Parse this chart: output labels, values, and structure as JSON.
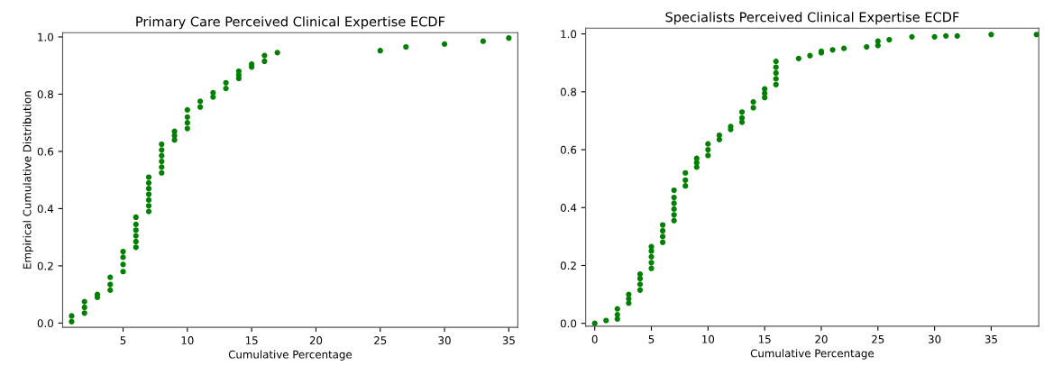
{
  "chart_data": [
    {
      "type": "scatter",
      "title": "Primary Care Perceived Clinical Expertise ECDF",
      "xlabel": "Cumulative Percentage",
      "ylabel": "Empirical Cumulative Distribution",
      "marker": "circle",
      "grid": false,
      "x": [
        1,
        1,
        2,
        2,
        2,
        3,
        3,
        4,
        4,
        4,
        5,
        5,
        5,
        5,
        6,
        6,
        6,
        6,
        6,
        6,
        7,
        7,
        7,
        7,
        7,
        7,
        7,
        8,
        8,
        8,
        8,
        8,
        8,
        9,
        9,
        9,
        10,
        10,
        10,
        10,
        11,
        11,
        12,
        12,
        13,
        13,
        14,
        14,
        14,
        15,
        15,
        16,
        16,
        17,
        25,
        27,
        30,
        33,
        35
      ],
      "series": [
        {
          "color": "#008000",
          "values": [
            0.005,
            0.025,
            0.035,
            0.055,
            0.075,
            0.09,
            0.1,
            0.115,
            0.135,
            0.16,
            0.18,
            0.205,
            0.23,
            0.25,
            0.265,
            0.285,
            0.305,
            0.325,
            0.345,
            0.37,
            0.39,
            0.41,
            0.43,
            0.45,
            0.47,
            0.49,
            0.51,
            0.525,
            0.545,
            0.565,
            0.585,
            0.605,
            0.625,
            0.64,
            0.655,
            0.67,
            0.68,
            0.7,
            0.72,
            0.745,
            0.755,
            0.775,
            0.79,
            0.805,
            0.82,
            0.84,
            0.855,
            0.867,
            0.88,
            0.895,
            0.905,
            0.915,
            0.935,
            0.945,
            0.952,
            0.965,
            0.975,
            0.985,
            0.996
          ]
        }
      ],
      "xlim": [
        0.3,
        35.7
      ],
      "ylim": [
        -0.015,
        1.015
      ],
      "xticks": [
        5,
        10,
        15,
        20,
        25,
        30,
        35
      ],
      "yticks": [
        {
          "value": 0,
          "label": "0.0"
        },
        {
          "value": 0.2,
          "label": "0.2"
        },
        {
          "value": 0.4,
          "label": "0.4"
        },
        {
          "value": 0.6,
          "label": "0.6"
        },
        {
          "value": 0.8,
          "label": "0.8"
        },
        {
          "value": 1,
          "label": "1.0"
        }
      ]
    },
    {
      "type": "scatter",
      "title": "Specialists Perceived Clinical Expertise ECDF",
      "xlabel": "Cumulative Percentage",
      "marker": "circle",
      "grid": false,
      "x": [
        0,
        1,
        2,
        2,
        2,
        3,
        3,
        3,
        4,
        4,
        4,
        4,
        5,
        5,
        5,
        5,
        5,
        6,
        6,
        6,
        6,
        7,
        7,
        7,
        7,
        7,
        7,
        8,
        8,
        8,
        9,
        9,
        9,
        10,
        10,
        10,
        11,
        11,
        12,
        12,
        13,
        13,
        13,
        14,
        14,
        15,
        15,
        15,
        16,
        16,
        16,
        16,
        16,
        18,
        19,
        20,
        20,
        21,
        22,
        24,
        25,
        25,
        26,
        28,
        30,
        31,
        32,
        35,
        39
      ],
      "series": [
        {
          "color": "#008000",
          "values": [
            0.0,
            0.01,
            0.015,
            0.03,
            0.05,
            0.07,
            0.085,
            0.1,
            0.115,
            0.135,
            0.155,
            0.17,
            0.19,
            0.21,
            0.23,
            0.25,
            0.265,
            0.28,
            0.3,
            0.32,
            0.34,
            0.355,
            0.375,
            0.395,
            0.415,
            0.435,
            0.46,
            0.475,
            0.495,
            0.52,
            0.54,
            0.555,
            0.57,
            0.58,
            0.6,
            0.62,
            0.635,
            0.65,
            0.67,
            0.68,
            0.695,
            0.71,
            0.73,
            0.745,
            0.765,
            0.78,
            0.795,
            0.81,
            0.825,
            0.845,
            0.865,
            0.885,
            0.905,
            0.915,
            0.925,
            0.935,
            0.94,
            0.945,
            0.95,
            0.955,
            0.96,
            0.975,
            0.98,
            0.99,
            0.99,
            0.993,
            0.993,
            0.998,
            0.998
          ]
        }
      ],
      "xlim": [
        -0.8,
        39.2
      ],
      "ylim": [
        -0.01,
        1.02
      ],
      "xticks": [
        0,
        5,
        10,
        15,
        20,
        25,
        30,
        35
      ],
      "yticks": [
        {
          "value": 0,
          "label": "0.0"
        },
        {
          "value": 0.2,
          "label": "0.2"
        },
        {
          "value": 0.4,
          "label": "0.4"
        },
        {
          "value": 0.6,
          "label": "0.6"
        },
        {
          "value": 0.8,
          "label": "0.8"
        },
        {
          "value": 1,
          "label": "1.0"
        }
      ]
    }
  ]
}
